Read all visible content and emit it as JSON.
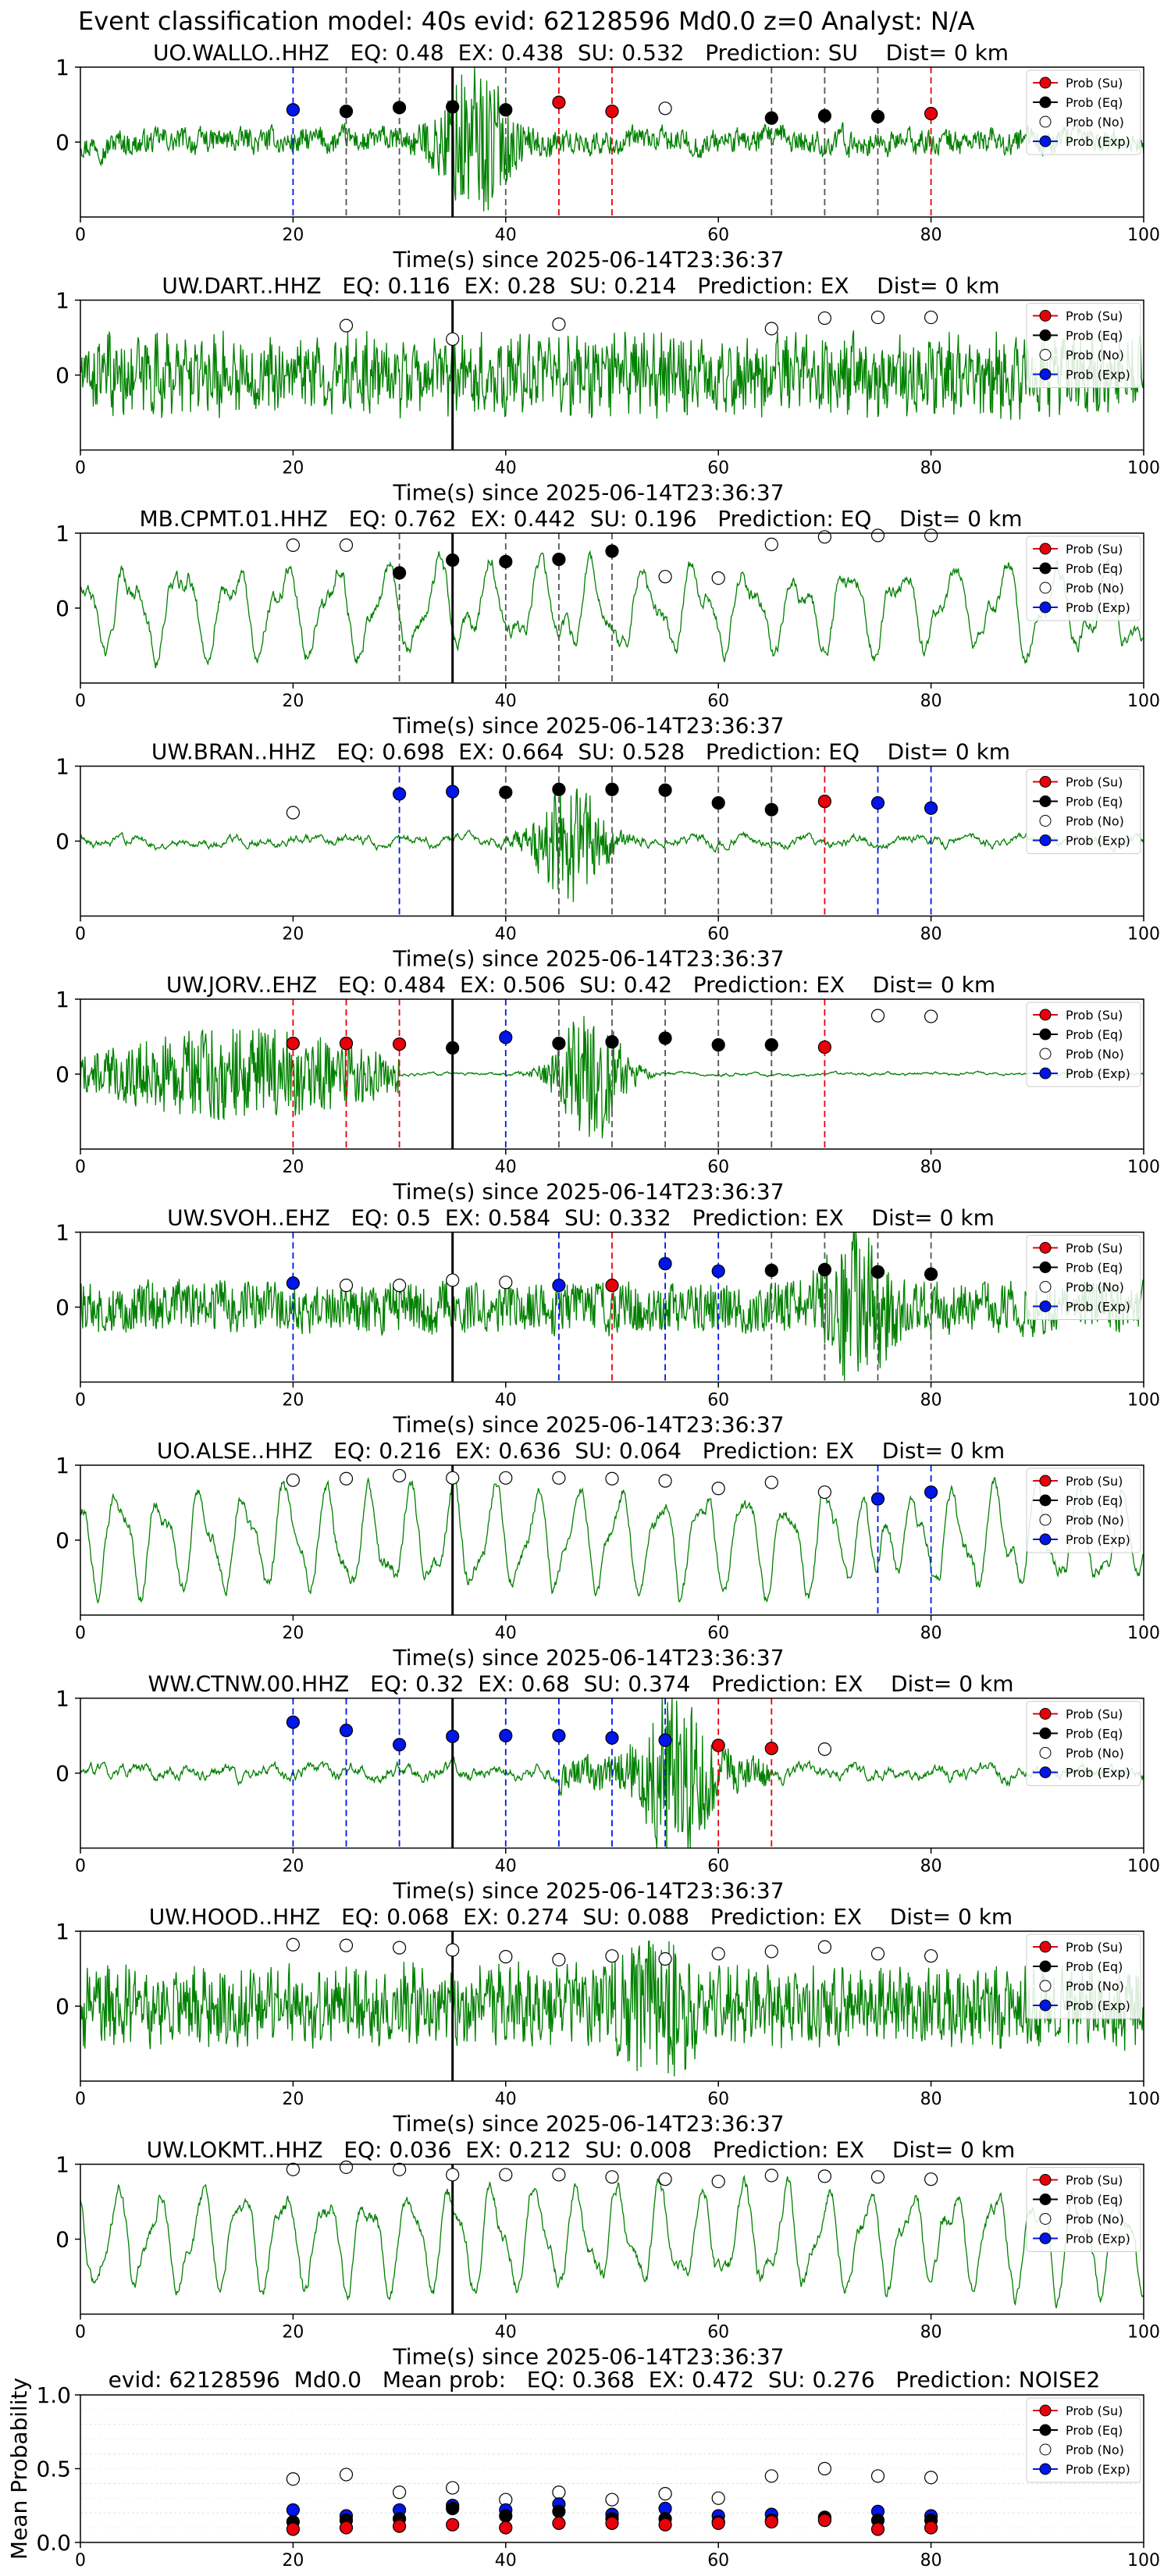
{
  "figure_title": "Event classification model: 40s evid: 62128596 Md0.0 z=0 Analyst: N/A",
  "legend_labels": [
    "Prob (Su)",
    "Prob (Eq)",
    "Prob (No)",
    "Prob (Exp)"
  ],
  "colors": {
    "su": "#e8000b",
    "eq": "#000000",
    "no": "#ffffff",
    "exp": "#0015e8",
    "waveform": "#008000",
    "origin_line": "#000000"
  },
  "chart_data": [
    {
      "type": "scatter",
      "title": "UO.WALLO..HHZ   EQ: 0.48  EX: 0.438  SU: 0.532   Prediction: SU    Dist= 0 km",
      "xlabel": "Time(s) since 2025-06-14T23:36:37",
      "xlim": [
        0,
        100
      ],
      "ylim": [
        -1,
        1
      ],
      "xticks": [
        0,
        20,
        40,
        60,
        80,
        100
      ],
      "yticks": [
        0,
        1
      ],
      "origin_time": 35,
      "waveform_character": "bursty",
      "waveform_burst_at": 37,
      "points": [
        {
          "x": 20,
          "y": 0.43,
          "class": "exp"
        },
        {
          "x": 25,
          "y": 0.41,
          "class": "eq"
        },
        {
          "x": 30,
          "y": 0.46,
          "class": "eq"
        },
        {
          "x": 35,
          "y": 0.47,
          "class": "eq"
        },
        {
          "x": 40,
          "y": 0.43,
          "class": "eq"
        },
        {
          "x": 45,
          "y": 0.53,
          "class": "su"
        },
        {
          "x": 50,
          "y": 0.41,
          "class": "su"
        },
        {
          "x": 55,
          "y": 0.45,
          "class": "no"
        },
        {
          "x": 65,
          "y": 0.32,
          "class": "eq"
        },
        {
          "x": 70,
          "y": 0.35,
          "class": "eq"
        },
        {
          "x": 75,
          "y": 0.34,
          "class": "eq"
        },
        {
          "x": 80,
          "y": 0.38,
          "class": "su"
        }
      ]
    },
    {
      "type": "scatter",
      "title": "UW.DART..HHZ   EQ: 0.116  EX: 0.28  SU: 0.214   Prediction: EX    Dist= 0 km",
      "xlabel": "Time(s) since 2025-06-14T23:36:37",
      "xlim": [
        0,
        100
      ],
      "ylim": [
        -1,
        1
      ],
      "xticks": [
        0,
        20,
        40,
        60,
        80,
        100
      ],
      "yticks": [
        0,
        1
      ],
      "origin_time": 35,
      "waveform_character": "dense",
      "points": [
        {
          "x": 25,
          "y": 0.66,
          "class": "no"
        },
        {
          "x": 35,
          "y": 0.48,
          "class": "no"
        },
        {
          "x": 45,
          "y": 0.68,
          "class": "no"
        },
        {
          "x": 65,
          "y": 0.62,
          "class": "no"
        },
        {
          "x": 70,
          "y": 0.76,
          "class": "no"
        },
        {
          "x": 75,
          "y": 0.77,
          "class": "no"
        },
        {
          "x": 80,
          "y": 0.77,
          "class": "no"
        }
      ]
    },
    {
      "type": "scatter",
      "title": "MB.CPMT.01.HHZ   EQ: 0.762  EX: 0.442  SU: 0.196   Prediction: EQ    Dist= 0 km",
      "xlabel": "Time(s) since 2025-06-14T23:36:37",
      "xlim": [
        0,
        100
      ],
      "ylim": [
        -1,
        1
      ],
      "xticks": [
        0,
        20,
        40,
        60,
        80,
        100
      ],
      "yticks": [
        0,
        1
      ],
      "origin_time": 35,
      "waveform_character": "oscillating",
      "points": [
        {
          "x": 20,
          "y": 0.84,
          "class": "no"
        },
        {
          "x": 25,
          "y": 0.84,
          "class": "no"
        },
        {
          "x": 30,
          "y": 0.47,
          "class": "eq"
        },
        {
          "x": 35,
          "y": 0.64,
          "class": "eq"
        },
        {
          "x": 40,
          "y": 0.62,
          "class": "eq"
        },
        {
          "x": 45,
          "y": 0.65,
          "class": "eq"
        },
        {
          "x": 50,
          "y": 0.76,
          "class": "eq"
        },
        {
          "x": 55,
          "y": 0.42,
          "class": "no"
        },
        {
          "x": 60,
          "y": 0.4,
          "class": "no"
        },
        {
          "x": 65,
          "y": 0.85,
          "class": "no"
        },
        {
          "x": 70,
          "y": 0.95,
          "class": "no"
        },
        {
          "x": 75,
          "y": 0.97,
          "class": "no"
        },
        {
          "x": 80,
          "y": 0.97,
          "class": "no"
        }
      ]
    },
    {
      "type": "scatter",
      "title": "UW.BRAN..HHZ   EQ: 0.698  EX: 0.664  SU: 0.528   Prediction: EQ    Dist= 0 km",
      "xlabel": "Time(s) since 2025-06-14T23:36:37",
      "xlim": [
        0,
        100
      ],
      "ylim": [
        -1,
        1
      ],
      "xticks": [
        0,
        20,
        40,
        60,
        80,
        100
      ],
      "yticks": [
        0,
        1
      ],
      "origin_time": 35,
      "waveform_character": "quiet",
      "waveform_burst_at": 46,
      "points": [
        {
          "x": 20,
          "y": 0.38,
          "class": "no"
        },
        {
          "x": 30,
          "y": 0.63,
          "class": "exp"
        },
        {
          "x": 35,
          "y": 0.66,
          "class": "exp"
        },
        {
          "x": 40,
          "y": 0.65,
          "class": "eq"
        },
        {
          "x": 45,
          "y": 0.69,
          "class": "eq"
        },
        {
          "x": 50,
          "y": 0.69,
          "class": "eq"
        },
        {
          "x": 55,
          "y": 0.68,
          "class": "eq"
        },
        {
          "x": 60,
          "y": 0.51,
          "class": "eq"
        },
        {
          "x": 65,
          "y": 0.42,
          "class": "eq"
        },
        {
          "x": 70,
          "y": 0.53,
          "class": "su"
        },
        {
          "x": 75,
          "y": 0.51,
          "class": "exp"
        },
        {
          "x": 80,
          "y": 0.44,
          "class": "exp"
        }
      ]
    },
    {
      "type": "scatter",
      "title": "UW.JORV..EHZ   EQ: 0.484  EX: 0.506  SU: 0.42   Prediction: EX    Dist= 0 km",
      "xlabel": "Time(s) since 2025-06-14T23:36:37",
      "xlim": [
        0,
        100
      ],
      "ylim": [
        -1,
        1
      ],
      "xticks": [
        0,
        20,
        40,
        60,
        80,
        100
      ],
      "yticks": [
        0,
        1
      ],
      "origin_time": 35,
      "waveform_character": "bursty_early",
      "waveform_burst_at": 48,
      "points": [
        {
          "x": 20,
          "y": 0.41,
          "class": "su"
        },
        {
          "x": 25,
          "y": 0.41,
          "class": "su"
        },
        {
          "x": 30,
          "y": 0.4,
          "class": "su"
        },
        {
          "x": 35,
          "y": 0.35,
          "class": "eq"
        },
        {
          "x": 40,
          "y": 0.49,
          "class": "exp"
        },
        {
          "x": 45,
          "y": 0.41,
          "class": "eq"
        },
        {
          "x": 50,
          "y": 0.43,
          "class": "eq"
        },
        {
          "x": 55,
          "y": 0.48,
          "class": "eq"
        },
        {
          "x": 60,
          "y": 0.39,
          "class": "eq"
        },
        {
          "x": 65,
          "y": 0.39,
          "class": "eq"
        },
        {
          "x": 70,
          "y": 0.36,
          "class": "su"
        },
        {
          "x": 75,
          "y": 0.78,
          "class": "no"
        },
        {
          "x": 80,
          "y": 0.77,
          "class": "no"
        }
      ]
    },
    {
      "type": "scatter",
      "title": "UW.SVOH..EHZ   EQ: 0.5  EX: 0.584  SU: 0.332   Prediction: EX    Dist= 0 km",
      "xlabel": "Time(s) since 2025-06-14T23:36:37",
      "xlim": [
        0,
        100
      ],
      "ylim": [
        -1,
        1
      ],
      "xticks": [
        0,
        20,
        40,
        60,
        80,
        100
      ],
      "yticks": [
        0,
        1
      ],
      "origin_time": 35,
      "waveform_character": "noisy_spike",
      "waveform_burst_at": 73,
      "points": [
        {
          "x": 20,
          "y": 0.32,
          "class": "exp"
        },
        {
          "x": 25,
          "y": 0.29,
          "class": "no"
        },
        {
          "x": 30,
          "y": 0.29,
          "class": "no"
        },
        {
          "x": 35,
          "y": 0.36,
          "class": "no"
        },
        {
          "x": 40,
          "y": 0.33,
          "class": "no"
        },
        {
          "x": 45,
          "y": 0.29,
          "class": "exp"
        },
        {
          "x": 50,
          "y": 0.29,
          "class": "su"
        },
        {
          "x": 55,
          "y": 0.58,
          "class": "exp"
        },
        {
          "x": 60,
          "y": 0.48,
          "class": "exp"
        },
        {
          "x": 65,
          "y": 0.49,
          "class": "eq"
        },
        {
          "x": 70,
          "y": 0.5,
          "class": "eq"
        },
        {
          "x": 75,
          "y": 0.47,
          "class": "eq"
        },
        {
          "x": 80,
          "y": 0.44,
          "class": "eq"
        }
      ]
    },
    {
      "type": "scatter",
      "title": "UO.ALSE..HHZ   EQ: 0.216  EX: 0.636  SU: 0.064   Prediction: EX    Dist= 0 km",
      "xlabel": "Time(s) since 2025-06-14T23:36:37",
      "xlim": [
        0,
        100
      ],
      "ylim": [
        -1,
        1
      ],
      "xticks": [
        0,
        20,
        40,
        60,
        80,
        100
      ],
      "yticks": [
        0,
        1
      ],
      "origin_time": 35,
      "waveform_character": "oscillating_strong",
      "waveform_burst_at": 75,
      "points": [
        {
          "x": 20,
          "y": 0.8,
          "class": "no"
        },
        {
          "x": 25,
          "y": 0.82,
          "class": "no"
        },
        {
          "x": 30,
          "y": 0.86,
          "class": "no"
        },
        {
          "x": 35,
          "y": 0.83,
          "class": "no"
        },
        {
          "x": 40,
          "y": 0.83,
          "class": "no"
        },
        {
          "x": 45,
          "y": 0.83,
          "class": "no"
        },
        {
          "x": 50,
          "y": 0.82,
          "class": "no"
        },
        {
          "x": 55,
          "y": 0.79,
          "class": "no"
        },
        {
          "x": 60,
          "y": 0.69,
          "class": "no"
        },
        {
          "x": 65,
          "y": 0.77,
          "class": "no"
        },
        {
          "x": 70,
          "y": 0.64,
          "class": "no"
        },
        {
          "x": 75,
          "y": 0.55,
          "class": "exp"
        },
        {
          "x": 80,
          "y": 0.64,
          "class": "exp"
        }
      ]
    },
    {
      "type": "scatter",
      "title": "WW.CTNW.00.HHZ   EQ: 0.32  EX: 0.68  SU: 0.374   Prediction: EX    Dist= 0 km",
      "xlabel": "Time(s) since 2025-06-14T23:36:37",
      "xlim": [
        0,
        100
      ],
      "ylim": [
        -1,
        1
      ],
      "xticks": [
        0,
        20,
        40,
        60,
        80,
        100
      ],
      "yticks": [
        0,
        1
      ],
      "origin_time": 35,
      "waveform_character": "quiet_burst",
      "waveform_burst_at": 56,
      "points": [
        {
          "x": 20,
          "y": 0.68,
          "class": "exp"
        },
        {
          "x": 25,
          "y": 0.57,
          "class": "exp"
        },
        {
          "x": 30,
          "y": 0.38,
          "class": "exp"
        },
        {
          "x": 35,
          "y": 0.49,
          "class": "exp"
        },
        {
          "x": 40,
          "y": 0.5,
          "class": "exp"
        },
        {
          "x": 45,
          "y": 0.5,
          "class": "exp"
        },
        {
          "x": 50,
          "y": 0.47,
          "class": "exp"
        },
        {
          "x": 55,
          "y": 0.44,
          "class": "exp"
        },
        {
          "x": 60,
          "y": 0.37,
          "class": "su"
        },
        {
          "x": 65,
          "y": 0.33,
          "class": "su"
        },
        {
          "x": 70,
          "y": 0.32,
          "class": "no"
        }
      ]
    },
    {
      "type": "scatter",
      "title": "UW.HOOD..HHZ   EQ: 0.068  EX: 0.274  SU: 0.088   Prediction: EX    Dist= 0 km",
      "xlabel": "Time(s) since 2025-06-14T23:36:37",
      "xlim": [
        0,
        100
      ],
      "ylim": [
        -1,
        1
      ],
      "xticks": [
        0,
        20,
        40,
        60,
        80,
        100
      ],
      "yticks": [
        0,
        1
      ],
      "origin_time": 35,
      "waveform_character": "dense",
      "waveform_burst_at": 54,
      "points": [
        {
          "x": 20,
          "y": 0.82,
          "class": "no"
        },
        {
          "x": 25,
          "y": 0.81,
          "class": "no"
        },
        {
          "x": 30,
          "y": 0.78,
          "class": "no"
        },
        {
          "x": 35,
          "y": 0.75,
          "class": "no"
        },
        {
          "x": 40,
          "y": 0.66,
          "class": "no"
        },
        {
          "x": 45,
          "y": 0.62,
          "class": "no"
        },
        {
          "x": 50,
          "y": 0.67,
          "class": "no"
        },
        {
          "x": 55,
          "y": 0.63,
          "class": "no"
        },
        {
          "x": 60,
          "y": 0.7,
          "class": "no"
        },
        {
          "x": 65,
          "y": 0.73,
          "class": "no"
        },
        {
          "x": 70,
          "y": 0.79,
          "class": "no"
        },
        {
          "x": 75,
          "y": 0.7,
          "class": "no"
        },
        {
          "x": 80,
          "y": 0.67,
          "class": "no"
        }
      ]
    },
    {
      "type": "scatter",
      "title": "UW.LOKMT..HHZ   EQ: 0.036  EX: 0.212  SU: 0.008   Prediction: EX    Dist= 0 km",
      "xlabel": "Time(s) since 2025-06-14T23:36:37",
      "xlim": [
        0,
        100
      ],
      "ylim": [
        -1,
        1
      ],
      "xticks": [
        0,
        20,
        40,
        60,
        80,
        100
      ],
      "yticks": [
        0,
        1
      ],
      "origin_time": 35,
      "waveform_character": "oscillating_strong",
      "points": [
        {
          "x": 20,
          "y": 0.93,
          "class": "no"
        },
        {
          "x": 25,
          "y": 0.96,
          "class": "no"
        },
        {
          "x": 30,
          "y": 0.93,
          "class": "no"
        },
        {
          "x": 35,
          "y": 0.86,
          "class": "no"
        },
        {
          "x": 40,
          "y": 0.86,
          "class": "no"
        },
        {
          "x": 45,
          "y": 0.86,
          "class": "no"
        },
        {
          "x": 50,
          "y": 0.83,
          "class": "no"
        },
        {
          "x": 55,
          "y": 0.8,
          "class": "no"
        },
        {
          "x": 60,
          "y": 0.77,
          "class": "no"
        },
        {
          "x": 65,
          "y": 0.85,
          "class": "no"
        },
        {
          "x": 70,
          "y": 0.84,
          "class": "no"
        },
        {
          "x": 75,
          "y": 0.83,
          "class": "no"
        },
        {
          "x": 80,
          "y": 0.8,
          "class": "no"
        }
      ]
    },
    {
      "type": "scatter",
      "title": "evid: 62128596  Md0.0   Mean prob:   EQ: 0.368  EX: 0.472  SU: 0.276   Prediction: NOISE2",
      "xlabel": "",
      "ylabel": "Mean Probability",
      "xlim": [
        0,
        100
      ],
      "ylim": [
        0,
        1
      ],
      "xticks": [
        0,
        20,
        40,
        60,
        80,
        100
      ],
      "yticks": [
        0.0,
        0.5,
        1.0
      ],
      "ytick_labels": [
        "0.0",
        "0.5",
        "1.0"
      ],
      "grid": true,
      "series": [
        {
          "class": "no",
          "x": [
            20,
            25,
            30,
            35,
            40,
            45,
            50,
            55,
            60,
            65,
            70,
            75,
            80
          ],
          "values": [
            0.43,
            0.46,
            0.34,
            0.37,
            0.29,
            0.34,
            0.29,
            0.33,
            0.3,
            0.45,
            0.5,
            0.45,
            0.44
          ]
        },
        {
          "class": "exp",
          "x": [
            20,
            25,
            30,
            35,
            40,
            45,
            50,
            55,
            60,
            65,
            70,
            75,
            80
          ],
          "values": [
            0.22,
            0.18,
            0.22,
            0.25,
            0.22,
            0.26,
            0.19,
            0.23,
            0.18,
            0.19,
            0.16,
            0.21,
            0.18
          ]
        },
        {
          "class": "eq",
          "x": [
            20,
            25,
            30,
            35,
            40,
            45,
            50,
            55,
            60,
            65,
            70,
            75,
            80
          ],
          "values": [
            0.14,
            0.15,
            0.16,
            0.23,
            0.18,
            0.21,
            0.16,
            0.16,
            0.14,
            0.15,
            0.17,
            0.15,
            0.15
          ]
        },
        {
          "class": "su",
          "x": [
            20,
            25,
            30,
            35,
            40,
            45,
            50,
            55,
            60,
            65,
            70,
            75,
            80
          ],
          "values": [
            0.09,
            0.1,
            0.11,
            0.12,
            0.1,
            0.13,
            0.13,
            0.12,
            0.13,
            0.14,
            0.15,
            0.09,
            0.1
          ]
        }
      ]
    }
  ]
}
